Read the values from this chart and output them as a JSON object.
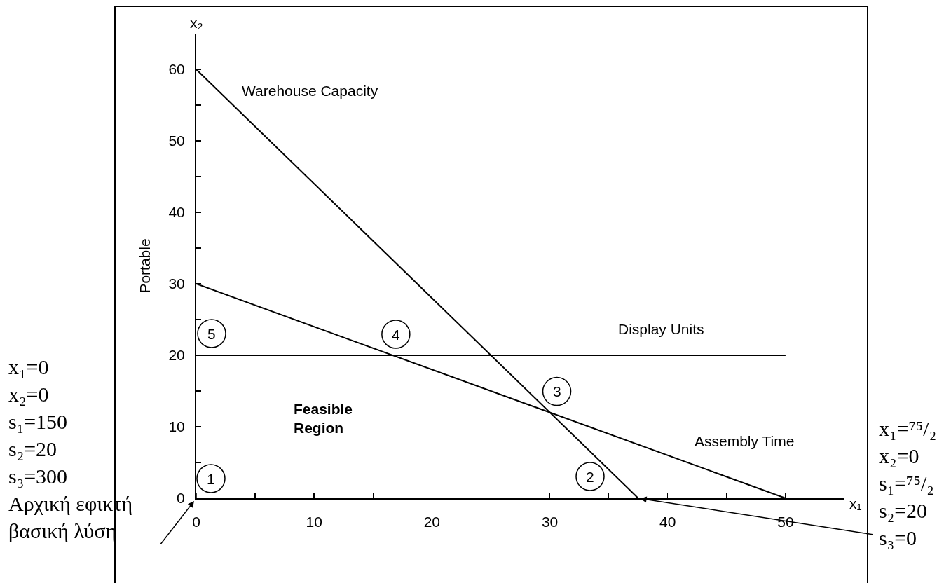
{
  "chart_data": {
    "type": "line",
    "ylabel": "Portable",
    "xlim": [
      0,
      55
    ],
    "xticks": [
      0,
      {
        "value": 5,
        "label": null
      },
      10,
      {
        "value": 15,
        "label": null
      },
      20,
      {
        "value": 25,
        "label": null
      },
      30,
      {
        "value": 35,
        "label": null
      },
      40,
      {
        "value": 45,
        "label": null
      },
      50,
      {
        "value": 55,
        "label": null
      }
    ],
    "ylim": [
      0,
      65
    ],
    "yticks": [
      0,
      {
        "value": 5,
        "label": null
      },
      10,
      {
        "value": 15,
        "label": null
      },
      20,
      {
        "value": 25,
        "label": null
      },
      30,
      {
        "value": 35,
        "label": null
      },
      40,
      {
        "value": 45,
        "label": null
      },
      50,
      {
        "value": 55,
        "label": null
      },
      60,
      {
        "value": 65,
        "label": null
      }
    ],
    "series": [
      {
        "color": "#000000",
        "x": [
          0,
          37.5
        ],
        "values": [
          60,
          0
        ]
      },
      {
        "color": "#000000",
        "x": [
          0,
          50
        ],
        "values": [
          30,
          0
        ]
      },
      {
        "color": "#000000",
        "x": [
          0,
          50
        ],
        "values": [
          20,
          20
        ]
      }
    ],
    "annotations": [
      "1",
      "2",
      {
        "text": "3",
        "x": 30,
        "y": 12
      },
      {
        "text": "4",
        "x": 16.7,
        "y": 20
      },
      {
        "text": "5",
        "x": 0,
        "y": 20
      },
      "Warehouse Capacity",
      "Display Units",
      "Assembly Time",
      "Feasible\nRegion",
      "x₂",
      "x₁",
      "x₁=0\nx₂=0\ns₁=150\ns₂=20\ns₃=300\nΑρχική εφικτή\nβασική λύση",
      {
        "text": "x₁=⁷⁵/₂\nx₂=0\ns₁=⁷⁵/₂\ns₂=20\ns₃=0",
        "x": 37.5,
        "y": 0
      }
    ]
  }
}
